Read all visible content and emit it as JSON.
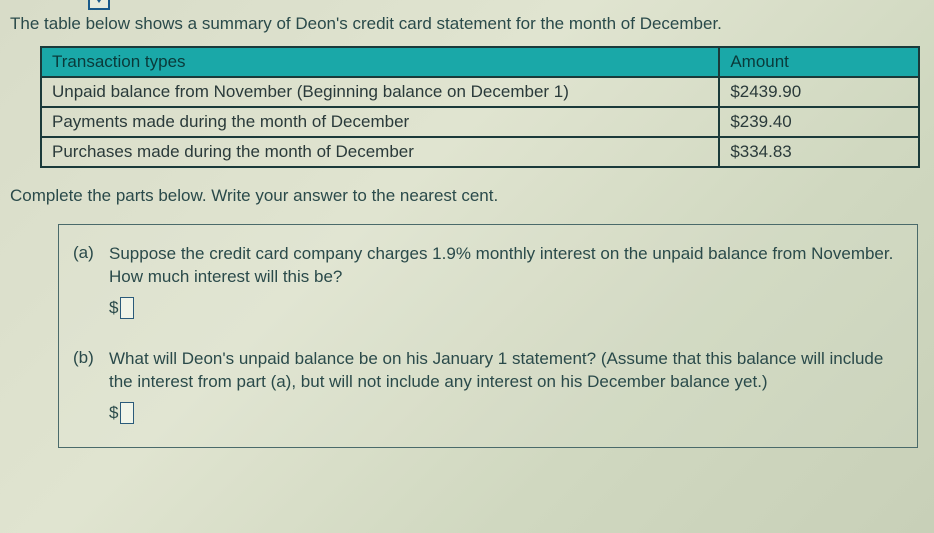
{
  "intro": "The table below shows a summary of Deon's credit card statement for the month of December.",
  "table": {
    "header_type": "Transaction types",
    "header_amount": "Amount",
    "rows": [
      {
        "type": "Unpaid balance from November (Beginning balance on December 1)",
        "amount": "$2439.90"
      },
      {
        "type": "Payments made during the month of December",
        "amount": "$239.40"
      },
      {
        "type": "Purchases made during the month of December",
        "amount": "$334.83"
      }
    ]
  },
  "instruction": "Complete the parts below. Write your answer to the nearest cent.",
  "parts": {
    "a": {
      "label": "(a)",
      "text": "Suppose the credit card company charges 1.9% monthly interest on the unpaid balance from November. How much interest will this be?",
      "currency": "$"
    },
    "b": {
      "label": "(b)",
      "text": "What will Deon's unpaid balance be on his January 1 statement? (Assume that this balance will include the interest from part (a), but will not include any interest on his December balance yet.)",
      "currency": "$"
    }
  },
  "colors": {
    "header_bg": "#1aa8a8",
    "border": "#1a3a3a",
    "text": "#2a4a4a"
  }
}
